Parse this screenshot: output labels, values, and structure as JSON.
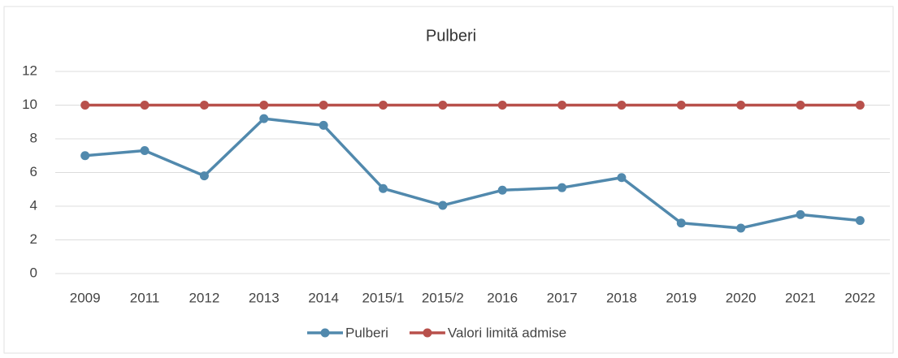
{
  "chart_data": {
    "type": "line",
    "title": "Pulberi",
    "categories": [
      "2009",
      "2011",
      "2012",
      "2013",
      "2014",
      "2015/1",
      "2015/2",
      "2016",
      "2017",
      "2018",
      "2019",
      "2020",
      "2021",
      "2022"
    ],
    "series": [
      {
        "name": "Pulberi",
        "color": "#5189ad",
        "values": [
          7.0,
          7.3,
          5.8,
          9.2,
          8.8,
          5.05,
          4.05,
          4.95,
          5.1,
          5.7,
          3.0,
          2.7,
          3.5,
          3.15
        ]
      },
      {
        "name": "Valori limită admise",
        "color": "#b8504b",
        "values": [
          10,
          10,
          10,
          10,
          10,
          10,
          10,
          10,
          10,
          10,
          10,
          10,
          10,
          10
        ]
      }
    ],
    "ylim": [
      0,
      12
    ],
    "yticks": [
      0,
      2,
      4,
      6,
      8,
      10,
      12
    ],
    "grid": true,
    "legend": "bottom"
  }
}
